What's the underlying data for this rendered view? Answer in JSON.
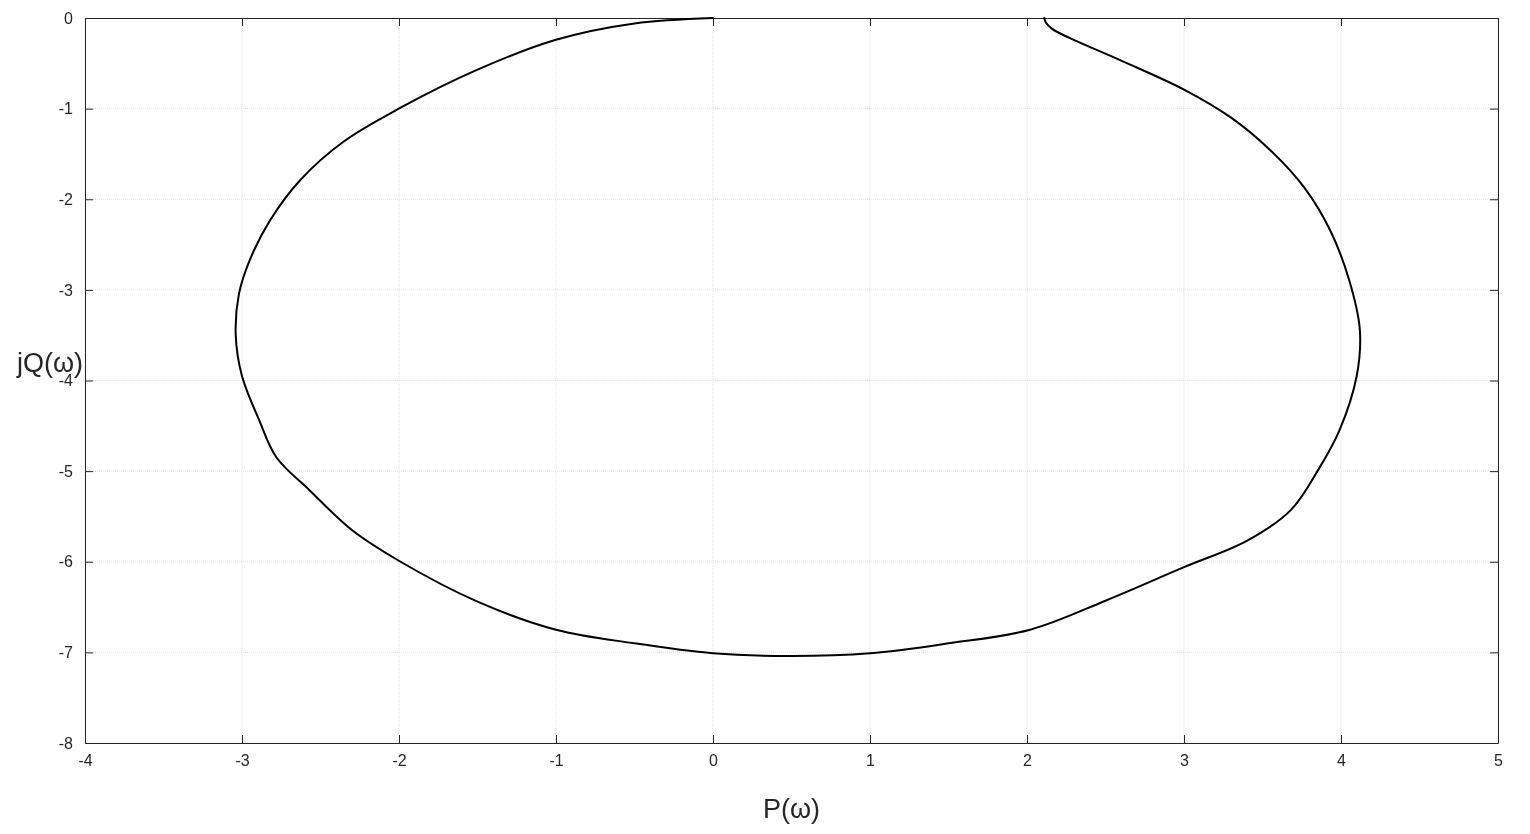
{
  "chart_data": {
    "type": "line",
    "xlabel": "P(ω)",
    "ylabel": "jQ(ω)",
    "xlim": [
      -4,
      5
    ],
    "ylim": [
      -8,
      0
    ],
    "xticks": [
      -4,
      -3,
      -2,
      -1,
      0,
      1,
      2,
      3,
      4,
      5
    ],
    "yticks": [
      -8,
      -7,
      -6,
      -5,
      -4,
      -3,
      -2,
      -1,
      0
    ],
    "grid": true,
    "marker": "none",
    "line_style": "solid",
    "series": [
      {
        "color": "#000000",
        "x": [
          2.11,
          2.12,
          2.16,
          2.27,
          2.6,
          3.0,
          3.3,
          3.55,
          3.77,
          3.93,
          4.05,
          4.12,
          4.1,
          3.99,
          3.85,
          3.68,
          3.4,
          3.0,
          2.5,
          2.02,
          1.5,
          1.0,
          0.49,
          0.0,
          -0.5,
          -1.0,
          -1.5,
          -1.99,
          -2.3,
          -2.57,
          -2.78,
          -2.89,
          -3.0,
          -3.04,
          -3.02,
          -2.95,
          -2.82,
          -2.63,
          -2.35,
          -1.99,
          -1.5,
          -1.0,
          -0.5,
          0.0
        ],
        "values": [
          0,
          -0.05,
          -0.12,
          -0.22,
          -0.47,
          -0.79,
          -1.1,
          -1.46,
          -1.88,
          -2.34,
          -2.88,
          -3.44,
          -3.95,
          -4.55,
          -5.0,
          -5.43,
          -5.77,
          -6.06,
          -6.43,
          -6.75,
          -6.9,
          -7.01,
          -7.04,
          -7.01,
          -6.9,
          -6.75,
          -6.44,
          -6.0,
          -5.65,
          -5.21,
          -4.85,
          -4.44,
          -3.95,
          -3.5,
          -3.05,
          -2.67,
          -2.23,
          -1.79,
          -1.36,
          -0.99,
          -0.57,
          -0.24,
          -0.06,
          0
        ]
      }
    ]
  }
}
